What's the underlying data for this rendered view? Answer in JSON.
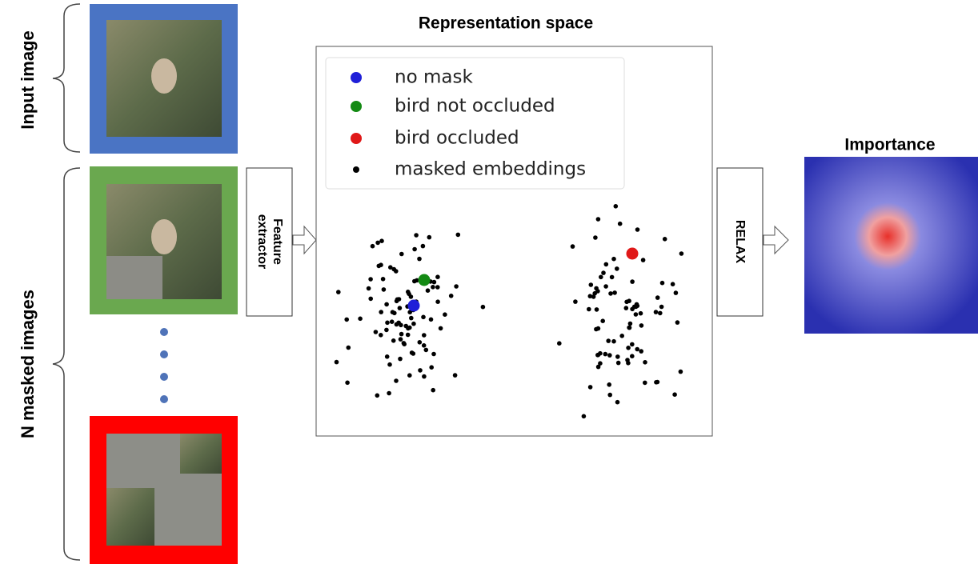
{
  "left_labels": {
    "input": "Input image",
    "masked": "N masked images"
  },
  "feature_extractor": [
    "Feature",
    "extractor"
  ],
  "representation": {
    "title": "Representation space",
    "legend": [
      "no mask",
      "bird not occluded",
      "bird occluded",
      "masked embeddings"
    ]
  },
  "relax": "RELAX",
  "importance": "Importance"
}
